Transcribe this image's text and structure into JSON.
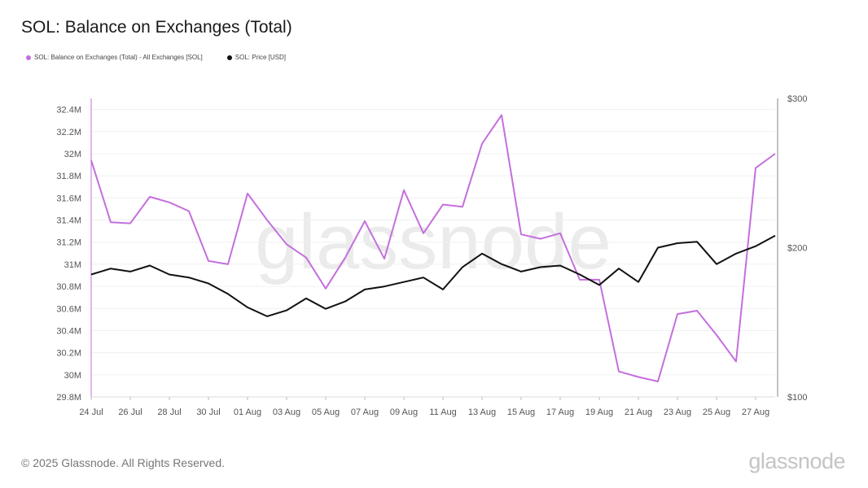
{
  "title": "SOL: Balance on Exchanges (Total)",
  "legend": [
    {
      "label": "SOL: Balance on Exchanges (Total) - All Exchanges [SOL]",
      "color": "#c46fdc"
    },
    {
      "label": "SOL: Price [USD]",
      "color": "#111111"
    }
  ],
  "watermark": "glassnode",
  "copyright": "© 2025 Glassnode. All Rights Reserved.",
  "logo": "glassnode",
  "chart_data": {
    "type": "line",
    "x": [
      "24 Jul",
      "25 Jul",
      "26 Jul",
      "27 Jul",
      "28 Jul",
      "29 Jul",
      "30 Jul",
      "31 Jul",
      "01 Aug",
      "02 Aug",
      "03 Aug",
      "04 Aug",
      "05 Aug",
      "06 Aug",
      "07 Aug",
      "08 Aug",
      "09 Aug",
      "10 Aug",
      "11 Aug",
      "12 Aug",
      "13 Aug",
      "14 Aug",
      "15 Aug",
      "16 Aug",
      "17 Aug",
      "18 Aug",
      "19 Aug",
      "20 Aug",
      "21 Aug",
      "22 Aug",
      "23 Aug",
      "24 Aug",
      "25 Aug",
      "26 Aug",
      "27 Aug",
      "28 Aug"
    ],
    "x_ticks": [
      "24 Jul",
      "26 Jul",
      "28 Jul",
      "30 Jul",
      "01 Aug",
      "03 Aug",
      "05 Aug",
      "07 Aug",
      "09 Aug",
      "11 Aug",
      "13 Aug",
      "15 Aug",
      "17 Aug",
      "19 Aug",
      "21 Aug",
      "23 Aug",
      "25 Aug",
      "27 Aug"
    ],
    "y_left": {
      "ticks": [
        "29.8M",
        "30M",
        "30.2M",
        "30.4M",
        "30.6M",
        "30.8M",
        "31M",
        "31.2M",
        "31.4M",
        "31.6M",
        "31.8M",
        "32M",
        "32.2M",
        "32.4M"
      ],
      "min": 29.8,
      "max": 32.5
    },
    "y_right": {
      "ticks": [
        "$100",
        "$200",
        "$300"
      ],
      "min": 100,
      "max": 300
    },
    "series": [
      {
        "name": "SOL: Balance on Exchanges (Total) - All Exchanges [SOL]",
        "axis": "left",
        "color": "#c46fdc",
        "values": [
          31.94,
          31.38,
          31.37,
          31.61,
          31.56,
          31.48,
          31.03,
          31.0,
          31.64,
          31.4,
          31.18,
          31.06,
          30.78,
          31.06,
          31.39,
          31.05,
          31.67,
          31.28,
          31.54,
          31.52,
          32.09,
          32.35,
          31.27,
          31.23,
          31.28,
          30.86,
          30.86,
          30.03,
          29.98,
          29.94,
          30.55,
          30.58,
          30.36,
          30.12,
          31.87,
          32.0
        ]
      },
      {
        "name": "SOL: Price [USD]",
        "axis": "right",
        "color": "#111111",
        "values": [
          182,
          186,
          184,
          188,
          182,
          180,
          176,
          169,
          160,
          154,
          158,
          166,
          159,
          164,
          172,
          174,
          177,
          180,
          172,
          187,
          196,
          189,
          184,
          187,
          188,
          182,
          175,
          186,
          177,
          200,
          203,
          204,
          189,
          196,
          201,
          208
        ]
      }
    ],
    "grid": true
  }
}
